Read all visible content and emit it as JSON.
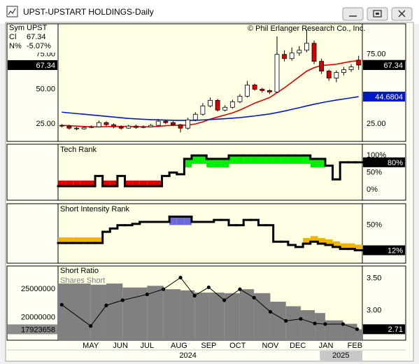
{
  "window": {
    "title": "UPST-UPSTART HOLDINGS-Daily"
  },
  "info": {
    "sym_label": "Sym",
    "sym": "UPST",
    "cl_label": "Cl",
    "cl": "67.34",
    "n_label": "N%",
    "n": "-5.07%"
  },
  "chart_data": [
    {
      "type": "candlestick",
      "annotation": "© Phil Erlanger Research Co., Inc.",
      "ylim": [
        12.5,
        97
      ],
      "yticks": [
        {
          "value": 75,
          "label": "75.00"
        },
        {
          "value": 50,
          "label": "50.00"
        },
        {
          "value": 25,
          "label": "25.00"
        }
      ],
      "yticks_right": [
        {
          "value": 75,
          "label": "75.00"
        },
        {
          "value": 25,
          "label": "25.00"
        }
      ],
      "up_color": "#ffffff",
      "down_color": "#d40000",
      "candles": {
        "open": [
          24,
          23.5,
          22,
          21.5,
          22.5,
          23,
          26,
          24.5,
          23,
          22,
          23.5,
          22.5,
          23,
          24,
          27,
          26,
          24.5,
          22,
          28,
          32,
          38,
          42,
          35,
          37,
          41,
          45,
          53,
          50,
          49,
          48,
          75,
          72,
          76,
          78,
          83,
          70,
          63,
          58,
          62,
          64,
          70.9
        ],
        "high": [
          25,
          24.5,
          23,
          23.5,
          24,
          27.5,
          27,
          25.5,
          24,
          24.5,
          24.5,
          24,
          25,
          28.5,
          28,
          27,
          25,
          29.5,
          33.5,
          40,
          44,
          43,
          38.5,
          42.5,
          46.5,
          56,
          54,
          51,
          50,
          88,
          78,
          80,
          81,
          93,
          85,
          72,
          64,
          63.5,
          66,
          68,
          74
        ],
        "low": [
          22.5,
          21,
          20.5,
          21,
          22,
          22.5,
          23.5,
          22,
          21,
          21.5,
          21.5,
          22,
          22.5,
          23.5,
          25,
          23.5,
          19,
          21,
          27,
          31,
          37,
          34,
          34,
          36,
          40,
          44,
          49,
          47.5,
          46.5,
          47.5,
          70,
          70.5,
          74,
          76.5,
          68,
          61,
          56,
          55,
          60,
          62.5,
          64
        ],
        "close": [
          23.5,
          22,
          21.5,
          22.5,
          23,
          26,
          24.5,
          23,
          22,
          23.5,
          22.5,
          23,
          24,
          27,
          26,
          24.5,
          22,
          28,
          32,
          38,
          42,
          35,
          37,
          41,
          45,
          53,
          50,
          49,
          48,
          75,
          72,
          76,
          78,
          83,
          70,
          63,
          58,
          62,
          64,
          66,
          67.34
        ]
      },
      "series": [
        {
          "color": "#e00000",
          "values": [
            24,
            23.8,
            23.5,
            23.2,
            23,
            23,
            23.1,
            23.2,
            23.3,
            23.2,
            23.1,
            23,
            23,
            23.3,
            23.8,
            24,
            24,
            24.3,
            25,
            26.5,
            28.5,
            30,
            31.5,
            33,
            35,
            37.5,
            40,
            42,
            44,
            47.5,
            51,
            55,
            59,
            63,
            65.5,
            67,
            67.5,
            68,
            69,
            70,
            70.5
          ]
        },
        {
          "color": "#0018c8",
          "values": [
            33.5,
            33,
            32.5,
            32,
            31.5,
            31,
            30.5,
            30,
            29.5,
            29,
            28.7,
            28.4,
            28.1,
            28,
            27.8,
            27.7,
            27.6,
            27.6,
            27.7,
            27.9,
            28.2,
            28.5,
            28.8,
            29.2,
            29.6,
            30.2,
            30.8,
            31.5,
            32.2,
            33.2,
            34.3,
            35.5,
            36.7,
            38,
            39.2,
            40.3,
            41.3,
            42.2,
            43,
            43.8,
            44.6804
          ]
        }
      ]
    },
    {
      "type": "step",
      "title": "Tech Rank",
      "ylim": [
        -31,
        133
      ],
      "yticks": [
        {
          "value": 100,
          "label": "100%"
        },
        {
          "value": 50,
          "label": "50%"
        },
        {
          "value": 0,
          "label": "0%"
        }
      ],
      "values": [
        10,
        10,
        10,
        10,
        10,
        40,
        10,
        10,
        40,
        10,
        10,
        10,
        10,
        10,
        40,
        50,
        45,
        90,
        100,
        100,
        90,
        90,
        90,
        100,
        100,
        100,
        100,
        100,
        100,
        100,
        100,
        100,
        100,
        100,
        90,
        90,
        70,
        30,
        80,
        80,
        80
      ],
      "colors": [
        "#e00000",
        "#e00000",
        "#e00000",
        "#e00000",
        "#e00000",
        null,
        "#e00000",
        "#e00000",
        null,
        "#e00000",
        "#e00000",
        "#e00000",
        "#e00000",
        "#e00000",
        null,
        null,
        null,
        "#00ee00",
        "#00ee00",
        "#00ee00",
        "#00ee00",
        "#00ee00",
        "#00ee00",
        "#00ee00",
        "#00ee00",
        "#00ee00",
        "#00ee00",
        "#00ee00",
        "#00ee00",
        "#00ee00",
        "#00ee00",
        "#00ee00",
        "#00ee00",
        "#00ee00",
        "#00ee00",
        "#00ee00",
        null,
        null,
        null,
        null,
        null
      ],
      "last_value_label": "80%"
    },
    {
      "type": "step",
      "title": "Short Intensity Rank",
      "ylim": [
        -7.6,
        82.6
      ],
      "yticks": [
        {
          "value": 50,
          "label": "50%"
        }
      ],
      "values": [
        23,
        23,
        23,
        23,
        23,
        23,
        40,
        45,
        50,
        50,
        52,
        55,
        55,
        55,
        55,
        63,
        63,
        63,
        55,
        55,
        55,
        58,
        58,
        50,
        50,
        58,
        58,
        50,
        50,
        25,
        25,
        20,
        17,
        22,
        25,
        22,
        20,
        17,
        14,
        14,
        12
      ],
      "colors": [
        "#f0b400",
        "#f0b400",
        "#f0b400",
        "#f0b400",
        "#f0b400",
        "#f0b400",
        null,
        null,
        null,
        null,
        null,
        null,
        null,
        null,
        null,
        "#6a6ad8",
        "#6a6ad8",
        "#6a6ad8",
        null,
        null,
        null,
        null,
        null,
        null,
        null,
        null,
        null,
        null,
        null,
        null,
        null,
        null,
        null,
        "#f0b400",
        "#f0b400",
        "#f0b400",
        "#f0b400",
        "#f0b400",
        "#f0b400",
        "#f0b400",
        "#f0b400"
      ],
      "last_value_label": "12%"
    },
    {
      "type": "combo",
      "xlim": [
        0,
        41
      ],
      "xticks": [
        {
          "value": 4.4,
          "label": "MAY"
        },
        {
          "value": 8.4,
          "label": "JUN"
        },
        {
          "value": 12,
          "label": "JUL"
        },
        {
          "value": 16.3,
          "label": "AUG"
        },
        {
          "value": 20.3,
          "label": "SEP"
        },
        {
          "value": 24.2,
          "label": "OCT"
        },
        {
          "value": 28.6,
          "label": "NOV"
        },
        {
          "value": 32.3,
          "label": "DEC"
        },
        {
          "value": 36.1,
          "label": "JAN"
        },
        {
          "value": 40,
          "label": "FEB"
        }
      ],
      "year_ticks": [
        {
          "value": 17.5,
          "label": "2024"
        },
        {
          "value": 38.1,
          "label": "2025"
        }
      ],
      "ylim": [
        16000000,
        29100000
      ],
      "yticks": [
        25000000,
        20000000
      ],
      "y2lim": [
        2.54,
        3.69
      ],
      "y2ticks": [
        {
          "value": 3.5,
          "label": "3.50"
        },
        {
          "value": 3,
          "label": "3.00"
        }
      ],
      "x": [
        0.5,
        4.4,
        6.5,
        8.7,
        12,
        14.2,
        16.5,
        18.4,
        20.3,
        22.4,
        24.5,
        26.4,
        28.6,
        30.7,
        32.7,
        34.6,
        36,
        38.4,
        40.3
      ],
      "series": [
        {
          "name": "Short Ratio",
          "color": "#000000",
          "axis": "y2",
          "values": [
            3.09,
            2.76,
            3.08,
            3.16,
            3.25,
            3.33,
            3.51,
            3.23,
            3.36,
            3.16,
            3.33,
            3.2,
            2.98,
            2.84,
            2.87,
            2.8,
            2.79,
            2.79,
            2.71
          ]
        },
        {
          "name": "Shares Short",
          "color": "#808080",
          "axis": "y",
          "values": [
            26000000,
            25800000,
            26000000,
            25300000,
            25600000,
            25000000,
            24800000,
            24400000,
            24400000,
            24300000,
            25000000,
            24300000,
            22800000,
            22000000,
            21300000,
            20800000,
            19500000,
            18900000,
            17923658
          ]
        }
      ]
    }
  ]
}
